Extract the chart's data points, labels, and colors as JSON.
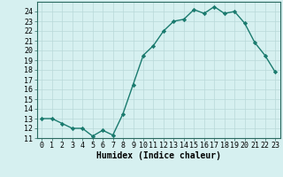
{
  "x": [
    0,
    1,
    2,
    3,
    4,
    5,
    6,
    7,
    8,
    9,
    10,
    11,
    12,
    13,
    14,
    15,
    16,
    17,
    18,
    19,
    20,
    21,
    22,
    23
  ],
  "y": [
    13,
    13,
    12.5,
    12,
    12,
    11.2,
    11.8,
    11.3,
    13.5,
    16.5,
    19.5,
    20.5,
    22,
    23,
    23.2,
    24.2,
    23.8,
    24.5,
    23.8,
    24,
    22.8,
    20.8,
    19.5,
    17.8
  ],
  "line_color": "#1a7a6e",
  "marker": "D",
  "marker_size": 2.2,
  "bg_color": "#d6f0f0",
  "grid_color": "#b8d8d8",
  "xlabel": "Humidex (Indice chaleur)",
  "ylim": [
    11,
    25
  ],
  "xlim": [
    -0.5,
    23.5
  ],
  "yticks": [
    11,
    12,
    13,
    14,
    15,
    16,
    17,
    18,
    19,
    20,
    21,
    22,
    23,
    24
  ],
  "xticks": [
    0,
    1,
    2,
    3,
    4,
    5,
    6,
    7,
    8,
    9,
    10,
    11,
    12,
    13,
    14,
    15,
    16,
    17,
    18,
    19,
    20,
    21,
    22,
    23
  ],
  "xtick_labels": [
    "0",
    "1",
    "2",
    "3",
    "4",
    "5",
    "6",
    "7",
    "8",
    "9",
    "10",
    "11",
    "12",
    "13",
    "14",
    "15",
    "16",
    "17",
    "18",
    "19",
    "20",
    "21",
    "22",
    "23"
  ],
  "xlabel_fontsize": 7,
  "tick_fontsize": 6,
  "line_width": 1.0,
  "spine_color": "#2a6a60"
}
